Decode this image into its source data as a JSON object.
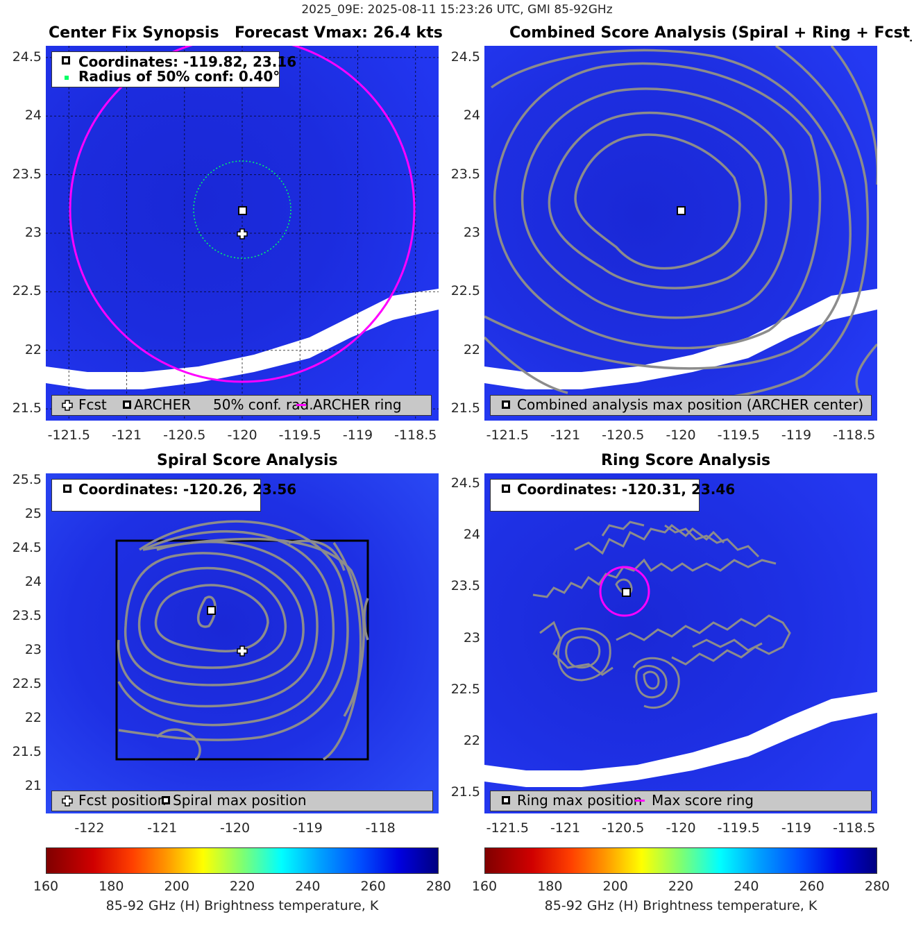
{
  "suptitle": "2025_09E: 2025-08-11 15:23:26 UTC, GMI 85-92GHz",
  "colors": {
    "background_bt": "#1f2fe8",
    "contour": "#8c8c8c",
    "ring": "#ff00ff",
    "conf": "#00ff66",
    "legend_bg": "#c8c8c8"
  },
  "panels": {
    "p1": {
      "title_left": "Center Fix Synopsis",
      "title_right": "Forecast Vmax: 26.4 kts",
      "info1": "Coordinates: -119.82, 23.16",
      "info2": "Radius of 50% conf: 0.40°",
      "legend": {
        "fcst": "Fcst",
        "archer": "ARCHER",
        "conf": "50% conf. rad.",
        "ring": "ARCHER ring"
      }
    },
    "p2": {
      "title": "Combined Score Analysis (Spiral + Ring + Fcst_Pe",
      "legend": "Combined analysis max position (ARCHER center)"
    },
    "p3": {
      "title": "Spiral Score Analysis",
      "info1": "Coordinates: -120.26, 23.56",
      "legend": {
        "fcst": "Fcst position",
        "spiral": "Spiral max position"
      }
    },
    "p4": {
      "title": "Ring Score Analysis",
      "info1": "Coordinates: -120.31, 23.46",
      "legend": {
        "ring": "Ring max position",
        "score": "Max score ring"
      }
    }
  },
  "colorbar": {
    "label": "85-92 GHz (H) Brightness temperature, K",
    "ticks": [
      "160",
      "180",
      "200",
      "220",
      "240",
      "260",
      "280"
    ],
    "range": [
      160,
      280
    ]
  },
  "chart_data": [
    {
      "type": "heatmap",
      "title": "Center Fix Synopsis",
      "xlim": [
        -121.7,
        -118.3
      ],
      "ylim": [
        21.4,
        24.6
      ],
      "xticks": [
        "-121.5",
        "-121",
        "-120.5",
        "-120",
        "-119.5",
        "-119",
        "-118.5"
      ],
      "yticks": [
        "21.5",
        "22",
        "22.5",
        "23",
        "23.5",
        "24",
        "24.5"
      ],
      "archer_center": [
        -119.82,
        23.16
      ],
      "forecast_position": [
        -119.82,
        22.96
      ],
      "conf_radius_deg": 0.4,
      "archer_ring_radius_deg": 1.5
    },
    {
      "type": "heatmap",
      "title": "Combined Score Analysis",
      "xlim": [
        -121.7,
        -118.3
      ],
      "ylim": [
        21.4,
        24.6
      ],
      "xticks": [
        "-121.5",
        "-121",
        "-120.5",
        "-120",
        "-119.5",
        "-119",
        "-118.5"
      ],
      "yticks": [
        "21.5",
        "22",
        "22.5",
        "23",
        "23.5",
        "24",
        "24.5"
      ],
      "max_position": [
        -119.82,
        23.16
      ]
    },
    {
      "type": "heatmap",
      "title": "Spiral Score Analysis",
      "xlim": [
        -122.6,
        -117.2
      ],
      "ylim": [
        20.6,
        25.6
      ],
      "xticks": [
        "-122",
        "-121",
        "-120",
        "-119",
        "-118"
      ],
      "yticks": [
        "21",
        "21.5",
        "22",
        "22.5",
        "23",
        "23.5",
        "24",
        "24.5",
        "25",
        "25.5"
      ],
      "spiral_max": [
        -120.26,
        23.56
      ],
      "forecast_position": [
        -119.82,
        22.96
      ]
    },
    {
      "type": "heatmap",
      "title": "Ring Score Analysis",
      "xlim": [
        -121.7,
        -118.3
      ],
      "ylim": [
        21.3,
        24.6
      ],
      "xticks": [
        "-121.5",
        "-121",
        "-120.5",
        "-120",
        "-119.5",
        "-119",
        "-118.5"
      ],
      "yticks": [
        "21.5",
        "22",
        "22.5",
        "23",
        "23.5",
        "24",
        "24.5"
      ],
      "ring_max": [
        -120.31,
        23.46
      ]
    }
  ]
}
